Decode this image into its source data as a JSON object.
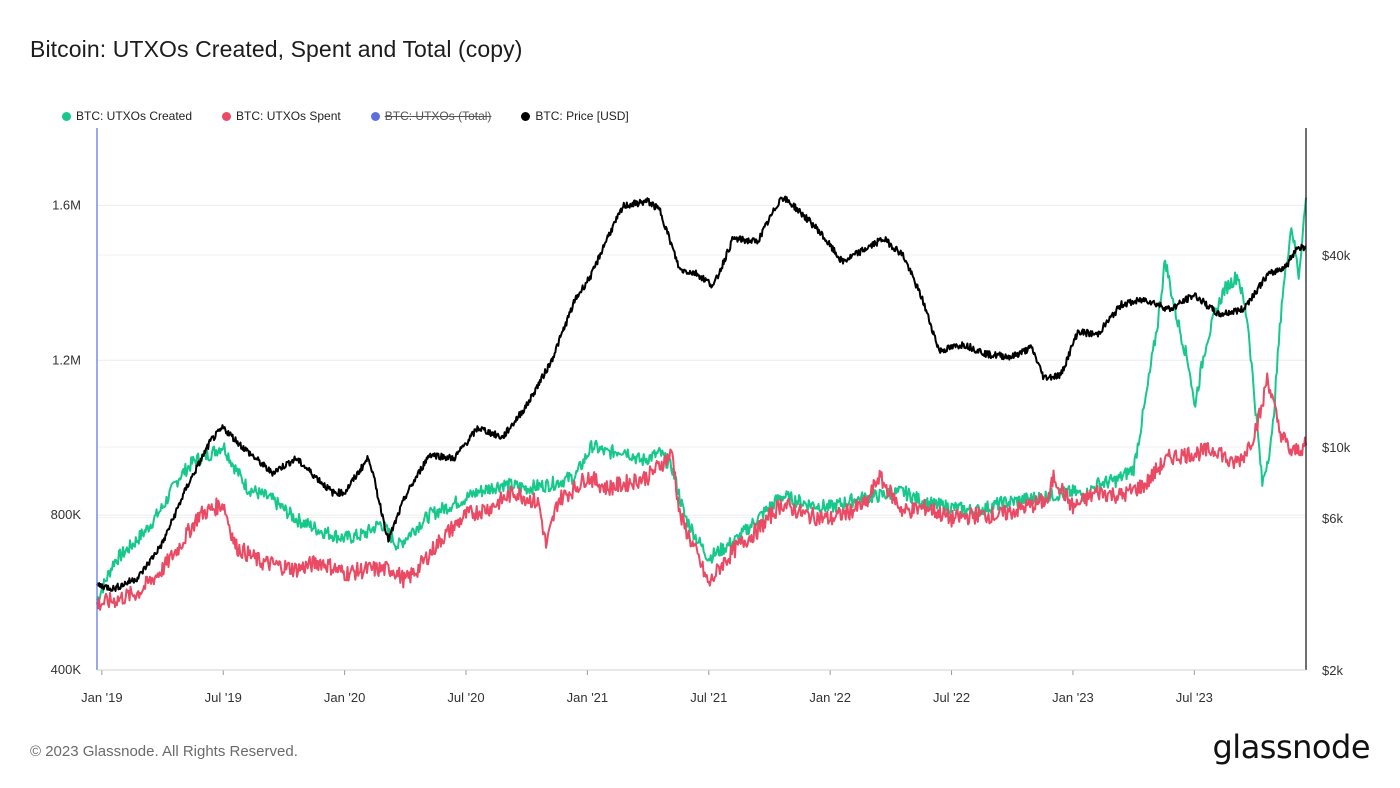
{
  "title": "Bitcoin: UTXOs Created, Spent and Total (copy)",
  "legend": [
    {
      "label": "BTC: UTXOs Created",
      "color": "#17c88b",
      "enabled": true
    },
    {
      "label": "BTC: UTXOs Spent",
      "color": "#ea4a63",
      "enabled": true
    },
    {
      "label": "BTC: UTXOs (Total)",
      "color": "#5b6fe0",
      "enabled": false
    },
    {
      "label": "BTC: Price [USD]",
      "color": "#000000",
      "enabled": true
    }
  ],
  "footer": "© 2023 Glassnode. All Rights Reserved.",
  "brand": "glassnode",
  "chart_data": {
    "type": "line",
    "x_range": [
      2018.98,
      2023.96
    ],
    "x_ticks": [
      {
        "label": "Jan '19",
        "t": 2019.0
      },
      {
        "label": "Jul '19",
        "t": 2019.5
      },
      {
        "label": "Jan '20",
        "t": 2020.0
      },
      {
        "label": "Jul '20",
        "t": 2020.5
      },
      {
        "label": "Jan '21",
        "t": 2021.0
      },
      {
        "label": "Jul '21",
        "t": 2021.5
      },
      {
        "label": "Jan '22",
        "t": 2022.0
      },
      {
        "label": "Jul '22",
        "t": 2022.5
      },
      {
        "label": "Jan '23",
        "t": 2023.0
      },
      {
        "label": "Jul '23",
        "t": 2023.5
      }
    ],
    "y_left": {
      "range": [
        400000,
        1800000
      ],
      "ticks": [
        {
          "label": "400K",
          "v": 400000
        },
        {
          "label": "800K",
          "v": 800000
        },
        {
          "label": "1.2M",
          "v": 1200000
        },
        {
          "label": "1.6M",
          "v": 1600000
        }
      ]
    },
    "y_right": {
      "scale": "log",
      "range": [
        2000,
        100000
      ],
      "ticks": [
        {
          "label": "$2k",
          "v": 2000
        },
        {
          "label": "$6k",
          "v": 6000
        },
        {
          "label": "$10k",
          "v": 10000
        },
        {
          "label": "$40k",
          "v": 40000
        }
      ]
    },
    "series": [
      {
        "name": "BTC: UTXOs Created",
        "axis": "left",
        "color": "#17c88b",
        "points": [
          [
            2018.98,
            580000
          ],
          [
            2019.05,
            680000
          ],
          [
            2019.12,
            720000
          ],
          [
            2019.18,
            760000
          ],
          [
            2019.25,
            820000
          ],
          [
            2019.32,
            900000
          ],
          [
            2019.38,
            940000
          ],
          [
            2019.45,
            960000
          ],
          [
            2019.5,
            980000
          ],
          [
            2019.55,
            920000
          ],
          [
            2019.6,
            870000
          ],
          [
            2019.7,
            840000
          ],
          [
            2019.8,
            790000
          ],
          [
            2019.9,
            760000
          ],
          [
            2020.0,
            740000
          ],
          [
            2020.08,
            750000
          ],
          [
            2020.15,
            780000
          ],
          [
            2020.22,
            720000
          ],
          [
            2020.28,
            760000
          ],
          [
            2020.35,
            800000
          ],
          [
            2020.45,
            830000
          ],
          [
            2020.55,
            860000
          ],
          [
            2020.65,
            880000
          ],
          [
            2020.75,
            870000
          ],
          [
            2020.85,
            880000
          ],
          [
            2020.95,
            900000
          ],
          [
            2021.02,
            980000
          ],
          [
            2021.08,
            960000
          ],
          [
            2021.15,
            970000
          ],
          [
            2021.22,
            940000
          ],
          [
            2021.3,
            960000
          ],
          [
            2021.35,
            920000
          ],
          [
            2021.4,
            800000
          ],
          [
            2021.45,
            740000
          ],
          [
            2021.5,
            690000
          ],
          [
            2021.55,
            710000
          ],
          [
            2021.62,
            740000
          ],
          [
            2021.7,
            790000
          ],
          [
            2021.8,
            850000
          ],
          [
            2021.9,
            830000
          ],
          [
            2022.0,
            820000
          ],
          [
            2022.1,
            840000
          ],
          [
            2022.2,
            850000
          ],
          [
            2022.3,
            860000
          ],
          [
            2022.4,
            830000
          ],
          [
            2022.5,
            820000
          ],
          [
            2022.6,
            810000
          ],
          [
            2022.7,
            830000
          ],
          [
            2022.8,
            840000
          ],
          [
            2022.9,
            850000
          ],
          [
            2023.0,
            860000
          ],
          [
            2023.05,
            850000
          ],
          [
            2023.1,
            880000
          ],
          [
            2023.18,
            890000
          ],
          [
            2023.25,
            920000
          ],
          [
            2023.3,
            1100000
          ],
          [
            2023.35,
            1300000
          ],
          [
            2023.38,
            1460000
          ],
          [
            2023.42,
            1330000
          ],
          [
            2023.48,
            1180000
          ],
          [
            2023.5,
            1080000
          ],
          [
            2023.55,
            1250000
          ],
          [
            2023.62,
            1380000
          ],
          [
            2023.68,
            1420000
          ],
          [
            2023.72,
            1300000
          ],
          [
            2023.78,
            880000
          ],
          [
            2023.82,
            1000000
          ],
          [
            2023.86,
            1350000
          ],
          [
            2023.9,
            1550000
          ],
          [
            2023.93,
            1420000
          ],
          [
            2023.96,
            1620000
          ]
        ]
      },
      {
        "name": "BTC: UTXOs Spent",
        "axis": "left",
        "color": "#ea4a63",
        "points": [
          [
            2018.98,
            570000
          ],
          [
            2019.05,
            580000
          ],
          [
            2019.15,
            600000
          ],
          [
            2019.25,
            660000
          ],
          [
            2019.32,
            720000
          ],
          [
            2019.4,
            800000
          ],
          [
            2019.5,
            830000
          ],
          [
            2019.55,
            720000
          ],
          [
            2019.65,
            680000
          ],
          [
            2019.8,
            660000
          ],
          [
            2019.9,
            680000
          ],
          [
            2020.0,
            650000
          ],
          [
            2020.1,
            660000
          ],
          [
            2020.2,
            660000
          ],
          [
            2020.25,
            630000
          ],
          [
            2020.3,
            660000
          ],
          [
            2020.4,
            740000
          ],
          [
            2020.5,
            800000
          ],
          [
            2020.6,
            820000
          ],
          [
            2020.7,
            860000
          ],
          [
            2020.8,
            830000
          ],
          [
            2020.83,
            720000
          ],
          [
            2020.88,
            840000
          ],
          [
            2020.95,
            870000
          ],
          [
            2021.0,
            900000
          ],
          [
            2021.08,
            870000
          ],
          [
            2021.15,
            880000
          ],
          [
            2021.25,
            900000
          ],
          [
            2021.35,
            960000
          ],
          [
            2021.38,
            800000
          ],
          [
            2021.45,
            700000
          ],
          [
            2021.5,
            620000
          ],
          [
            2021.55,
            670000
          ],
          [
            2021.62,
            720000
          ],
          [
            2021.7,
            760000
          ],
          [
            2021.8,
            830000
          ],
          [
            2021.9,
            800000
          ],
          [
            2022.0,
            790000
          ],
          [
            2022.08,
            810000
          ],
          [
            2022.15,
            830000
          ],
          [
            2022.2,
            900000
          ],
          [
            2022.3,
            810000
          ],
          [
            2022.4,
            820000
          ],
          [
            2022.5,
            790000
          ],
          [
            2022.6,
            800000
          ],
          [
            2022.7,
            800000
          ],
          [
            2022.8,
            820000
          ],
          [
            2022.9,
            840000
          ],
          [
            2022.92,
            900000
          ],
          [
            2023.0,
            820000
          ],
          [
            2023.1,
            860000
          ],
          [
            2023.2,
            850000
          ],
          [
            2023.3,
            880000
          ],
          [
            2023.35,
            920000
          ],
          [
            2023.4,
            950000
          ],
          [
            2023.5,
            960000
          ],
          [
            2023.6,
            970000
          ],
          [
            2023.65,
            930000
          ],
          [
            2023.7,
            950000
          ],
          [
            2023.74,
            1000000
          ],
          [
            2023.78,
            1080000
          ],
          [
            2023.8,
            1160000
          ],
          [
            2023.85,
            1020000
          ],
          [
            2023.9,
            960000
          ],
          [
            2023.96,
            980000
          ]
        ]
      },
      {
        "name": "BTC: Price [USD]",
        "axis": "right",
        "color": "#000000",
        "points": [
          [
            2018.98,
            3700
          ],
          [
            2019.05,
            3600
          ],
          [
            2019.15,
            3900
          ],
          [
            2019.25,
            5000
          ],
          [
            2019.35,
            7500
          ],
          [
            2019.45,
            10500
          ],
          [
            2019.5,
            11500
          ],
          [
            2019.58,
            10000
          ],
          [
            2019.7,
            8300
          ],
          [
            2019.8,
            9200
          ],
          [
            2019.95,
            7200
          ],
          [
            2020.0,
            7200
          ],
          [
            2020.1,
            9300
          ],
          [
            2020.18,
            5100
          ],
          [
            2020.25,
            7000
          ],
          [
            2020.35,
            9500
          ],
          [
            2020.45,
            9200
          ],
          [
            2020.55,
            11500
          ],
          [
            2020.65,
            10700
          ],
          [
            2020.75,
            13500
          ],
          [
            2020.85,
            18500
          ],
          [
            2020.95,
            29000
          ],
          [
            2021.02,
            35000
          ],
          [
            2021.08,
            45000
          ],
          [
            2021.15,
            57000
          ],
          [
            2021.25,
            59000
          ],
          [
            2021.3,
            55000
          ],
          [
            2021.38,
            36000
          ],
          [
            2021.45,
            35000
          ],
          [
            2021.52,
            32000
          ],
          [
            2021.6,
            45000
          ],
          [
            2021.7,
            44000
          ],
          [
            2021.8,
            61000
          ],
          [
            2021.85,
            57000
          ],
          [
            2021.95,
            48000
          ],
          [
            2022.05,
            38000
          ],
          [
            2022.15,
            42000
          ],
          [
            2022.22,
            45000
          ],
          [
            2022.3,
            40000
          ],
          [
            2022.38,
            29000
          ],
          [
            2022.45,
            20000
          ],
          [
            2022.55,
            21000
          ],
          [
            2022.65,
            19500
          ],
          [
            2022.75,
            19200
          ],
          [
            2022.83,
            20500
          ],
          [
            2022.88,
            16500
          ],
          [
            2022.95,
            16800
          ],
          [
            2023.02,
            23000
          ],
          [
            2023.1,
            22500
          ],
          [
            2023.2,
            28000
          ],
          [
            2023.3,
            29000
          ],
          [
            2023.4,
            27000
          ],
          [
            2023.5,
            30000
          ],
          [
            2023.6,
            26000
          ],
          [
            2023.7,
            27000
          ],
          [
            2023.8,
            34500
          ],
          [
            2023.88,
            37000
          ],
          [
            2023.92,
            42000
          ],
          [
            2023.96,
            42500
          ]
        ]
      }
    ]
  }
}
